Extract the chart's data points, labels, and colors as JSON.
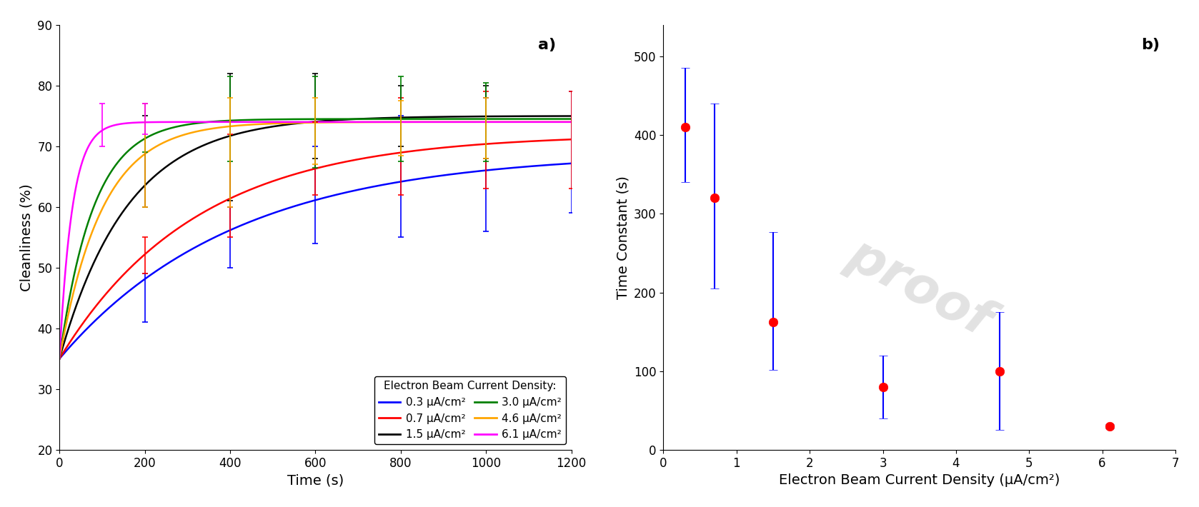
{
  "panel_a": {
    "title": "a)",
    "xlabel": "Time (s)",
    "ylabel": "Cleanliness (%)",
    "xlim": [
      0,
      1200
    ],
    "ylim": [
      20,
      90
    ],
    "yticks": [
      20,
      30,
      40,
      50,
      60,
      70,
      80,
      90
    ],
    "xticks": [
      0,
      200,
      400,
      600,
      800,
      1000,
      1200
    ],
    "curves": [
      {
        "label": "0.3 μA/cm²",
        "color": "blue",
        "tau": 410,
        "C_inf": 69,
        "C_0": 35
      },
      {
        "label": "0.7 μA/cm²",
        "color": "red",
        "tau": 320,
        "C_inf": 72,
        "C_0": 35
      },
      {
        "label": "1.5 μA/cm²",
        "color": "black",
        "tau": 160,
        "C_inf": 75,
        "C_0": 35
      },
      {
        "label": "3.0 μA/cm²",
        "color": "green",
        "tau": 80,
        "C_inf": 74.5,
        "C_0": 35
      },
      {
        "label": "4.6 μA/cm²",
        "color": "orange",
        "tau": 100,
        "C_inf": 74,
        "C_0": 35
      },
      {
        "label": "6.1 μA/cm²",
        "color": "magenta",
        "tau": 30,
        "C_inf": 74,
        "C_0": 35
      }
    ],
    "errorbars": [
      {
        "t": 200,
        "color": "blue",
        "y": 45,
        "yerr_lo": 4,
        "yerr_hi": 4
      },
      {
        "t": 400,
        "color": "blue",
        "y": 55,
        "yerr_lo": 5,
        "yerr_hi": 5
      },
      {
        "t": 600,
        "color": "blue",
        "y": 62,
        "yerr_lo": 8,
        "yerr_hi": 8
      },
      {
        "t": 800,
        "color": "blue",
        "y": 65,
        "yerr_lo": 10,
        "yerr_hi": 10
      },
      {
        "t": 1000,
        "color": "blue",
        "y": 67,
        "yerr_lo": 11,
        "yerr_hi": 11
      },
      {
        "t": 1200,
        "color": "blue",
        "y": 69,
        "yerr_lo": 10,
        "yerr_hi": 10
      },
      {
        "t": 200,
        "color": "red",
        "y": 52,
        "yerr_lo": 3,
        "yerr_hi": 3
      },
      {
        "t": 400,
        "color": "red",
        "y": 63,
        "yerr_lo": 8,
        "yerr_hi": 9
      },
      {
        "t": 600,
        "color": "red",
        "y": 67,
        "yerr_lo": 5,
        "yerr_hi": 7
      },
      {
        "t": 800,
        "color": "red",
        "y": 70,
        "yerr_lo": 8,
        "yerr_hi": 8
      },
      {
        "t": 1000,
        "color": "red",
        "y": 71,
        "yerr_lo": 8,
        "yerr_hi": 8
      },
      {
        "t": 1200,
        "color": "red",
        "y": 72,
        "yerr_lo": 9,
        "yerr_hi": 7
      },
      {
        "t": 200,
        "color": "black",
        "y": 68,
        "yerr_lo": 8,
        "yerr_hi": 7
      },
      {
        "t": 400,
        "color": "black",
        "y": 74,
        "yerr_lo": 13,
        "yerr_hi": 8
      },
      {
        "t": 600,
        "color": "black",
        "y": 75,
        "yerr_lo": 7,
        "yerr_hi": 7
      },
      {
        "t": 800,
        "color": "black",
        "y": 75,
        "yerr_lo": 5,
        "yerr_hi": 5
      },
      {
        "t": 1000,
        "color": "black",
        "y": 75,
        "yerr_lo": 7,
        "yerr_hi": 5
      },
      {
        "t": 200,
        "color": "green",
        "y": 74,
        "yerr_lo": 5,
        "yerr_hi": 3
      },
      {
        "t": 400,
        "color": "green",
        "y": 74.5,
        "yerr_lo": 7,
        "yerr_hi": 7
      },
      {
        "t": 600,
        "color": "green",
        "y": 74.5,
        "yerr_lo": 8,
        "yerr_hi": 7
      },
      {
        "t": 800,
        "color": "green",
        "y": 74.5,
        "yerr_lo": 7,
        "yerr_hi": 7
      },
      {
        "t": 1000,
        "color": "green",
        "y": 74.5,
        "yerr_lo": 7,
        "yerr_hi": 6
      },
      {
        "t": 200,
        "color": "orange",
        "y": 65,
        "yerr_lo": 5,
        "yerr_hi": 12
      },
      {
        "t": 400,
        "color": "orange",
        "y": 72,
        "yerr_lo": 12,
        "yerr_hi": 6
      },
      {
        "t": 600,
        "color": "orange",
        "y": 73,
        "yerr_lo": 6,
        "yerr_hi": 5
      },
      {
        "t": 800,
        "color": "orange",
        "y": 73.5,
        "yerr_lo": 5,
        "yerr_hi": 4
      },
      {
        "t": 1000,
        "color": "orange",
        "y": 74,
        "yerr_lo": 6,
        "yerr_hi": 4
      },
      {
        "t": 100,
        "color": "magenta",
        "y": 73,
        "yerr_lo": 3,
        "yerr_hi": 4
      },
      {
        "t": 200,
        "color": "magenta",
        "y": 74,
        "yerr_lo": 2,
        "yerr_hi": 3
      }
    ],
    "legend_title": "Electron Beam Current Density:"
  },
  "panel_b": {
    "title": "b)",
    "xlabel": "Electron Beam Current Density (μA/cm²)",
    "ylabel": "Time Constant (s)",
    "xlim": [
      0,
      7
    ],
    "ylim": [
      0,
      540
    ],
    "xticks": [
      0,
      1,
      2,
      3,
      4,
      5,
      6,
      7
    ],
    "yticks": [
      0,
      100,
      200,
      300,
      400,
      500
    ],
    "x": [
      0.3,
      0.7,
      1.5,
      3.0,
      4.6,
      6.1
    ],
    "y": [
      410,
      320,
      162,
      80,
      100,
      30
    ],
    "yerr_lo": [
      70,
      115,
      60,
      40,
      75,
      3
    ],
    "yerr_hi": [
      75,
      120,
      115,
      40,
      75,
      3
    ],
    "dot_color": "red",
    "err_color": "blue"
  }
}
